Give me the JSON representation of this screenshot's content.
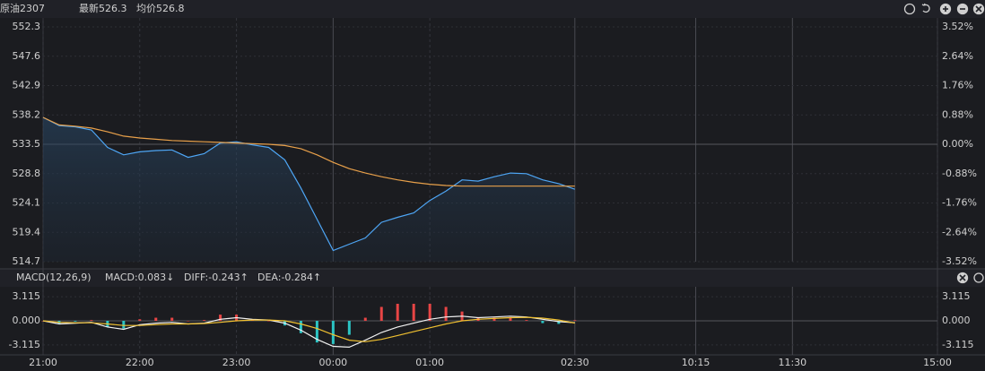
{
  "chart_data": [
    {
      "type": "line",
      "title": "原油2307",
      "annotations": [
        "最新526.3",
        "均价526.8"
      ],
      "x": [
        0,
        10,
        20,
        30,
        40,
        50,
        60,
        70,
        80,
        90,
        100,
        110,
        120,
        130,
        140,
        150,
        160,
        170,
        180,
        190,
        200,
        210,
        220,
        230,
        240,
        250,
        260,
        270,
        280,
        290,
        300,
        310,
        320,
        330
      ],
      "ylim": [
        514.7,
        552.3
      ],
      "yticks": [
        552.3,
        547.6,
        542.9,
        538.2,
        533.5,
        528.8,
        524.1,
        519.4,
        514.7
      ],
      "y2lim": [
        -3.52,
        3.52
      ],
      "y2ticks": [
        {
          "value": 3.52,
          "label": "3.52%"
        },
        {
          "value": 2.64,
          "label": "2.64%"
        },
        {
          "value": 1.76,
          "label": "1.76%"
        },
        {
          "value": 0.88,
          "label": "0.88%"
        },
        {
          "value": 0,
          "label": "0.00%"
        },
        {
          "value": -0.88,
          "label": "-0.88%"
        },
        {
          "value": -1.76,
          "label": "-1.76%"
        },
        {
          "value": -2.64,
          "label": "-2.64%"
        },
        {
          "value": -3.52,
          "label": "-3.52%"
        }
      ],
      "grid": true,
      "series": [
        {
          "color": "#4ea6f5",
          "values": [
            537.8,
            536.5,
            536.3,
            535.8,
            533.0,
            531.8,
            532.3,
            532.5,
            532.6,
            531.4,
            532.0,
            533.7,
            533.9,
            533.4,
            533.0,
            531.0,
            526.5,
            521.5,
            516.5,
            517.5,
            518.5,
            521.0,
            521.8,
            522.5,
            524.5,
            526.0,
            527.8,
            527.6,
            528.3,
            528.9,
            528.8,
            527.8,
            527.2,
            526.3
          ]
        },
        {
          "color": "#e8a04a",
          "values": [
            537.8,
            536.6,
            536.4,
            536.1,
            535.5,
            534.8,
            534.5,
            534.3,
            534.1,
            534.0,
            533.9,
            533.8,
            533.7,
            533.6,
            533.5,
            533.3,
            532.8,
            531.8,
            530.6,
            529.6,
            528.9,
            528.3,
            527.8,
            527.4,
            527.1,
            526.9,
            526.8,
            526.8,
            526.8,
            526.8,
            526.8,
            526.8,
            526.8,
            526.8
          ]
        }
      ]
    },
    {
      "type": "line",
      "title": "MACD(12,26,9)",
      "annotations": [
        "MACD:0.083↓",
        "DIFF:-0.243↑",
        "DEA:-0.284↑"
      ],
      "x": [
        0,
        10,
        20,
        30,
        40,
        50,
        60,
        70,
        80,
        90,
        100,
        110,
        120,
        130,
        140,
        150,
        160,
        170,
        180,
        190,
        200,
        210,
        220,
        230,
        240,
        250,
        260,
        270,
        280,
        290,
        300,
        310,
        320,
        330
      ],
      "xlim": [
        0,
        555
      ],
      "xticks": [
        {
          "value": 0,
          "label": "21:00"
        },
        {
          "value": 60,
          "label": "22:00"
        },
        {
          "value": 120,
          "label": "23:00"
        },
        {
          "value": 180,
          "label": "00:00"
        },
        {
          "value": 240,
          "label": "01:00"
        },
        {
          "value": 330,
          "label": "02:30"
        },
        {
          "value": 405,
          "label": "10:15"
        },
        {
          "value": 465,
          "label": "11:30"
        },
        {
          "value": 555,
          "label": "15:00"
        }
      ],
      "ylim": [
        -4.4,
        4.4
      ],
      "yticks": [
        3.115,
        {
          "value": 0,
          "label": "0.000"
        },
        -3.115
      ],
      "series": [
        {
          "type": "bar",
          "values": [
            0,
            -0.4,
            -0.1,
            0.1,
            -0.8,
            -1.0,
            0.2,
            0.4,
            0.4,
            0,
            0.1,
            0.8,
            0.8,
            0.2,
            0,
            -0.6,
            -1.6,
            -2.8,
            -3.0,
            -1.8,
            0.4,
            1.8,
            2.2,
            2.2,
            2.2,
            1.8,
            1.2,
            0.4,
            0.4,
            0.4,
            0.1,
            -0.3,
            -0.4,
            0.083
          ]
        },
        {
          "color": "#f2f2f2",
          "values": [
            0,
            -0.4,
            -0.3,
            -0.2,
            -0.8,
            -1.1,
            -0.5,
            -0.3,
            -0.2,
            -0.4,
            -0.3,
            0.2,
            0.4,
            0.2,
            0.1,
            -0.3,
            -1.2,
            -2.4,
            -3.3,
            -3.4,
            -2.5,
            -1.5,
            -0.8,
            -0.3,
            0.2,
            0.5,
            0.6,
            0.4,
            0.5,
            0.6,
            0.5,
            0.2,
            -0.1,
            -0.243
          ]
        },
        {
          "color": "#f0c030",
          "values": [
            0,
            -0.2,
            -0.25,
            -0.25,
            -0.4,
            -0.6,
            -0.6,
            -0.5,
            -0.4,
            -0.4,
            -0.35,
            -0.2,
            0,
            0.1,
            0.1,
            0,
            -0.4,
            -1.0,
            -1.8,
            -2.5,
            -2.7,
            -2.4,
            -1.9,
            -1.4,
            -0.9,
            -0.4,
            0,
            0.2,
            0.3,
            0.4,
            0.45,
            0.35,
            0.1,
            -0.284
          ]
        }
      ]
    }
  ]
}
